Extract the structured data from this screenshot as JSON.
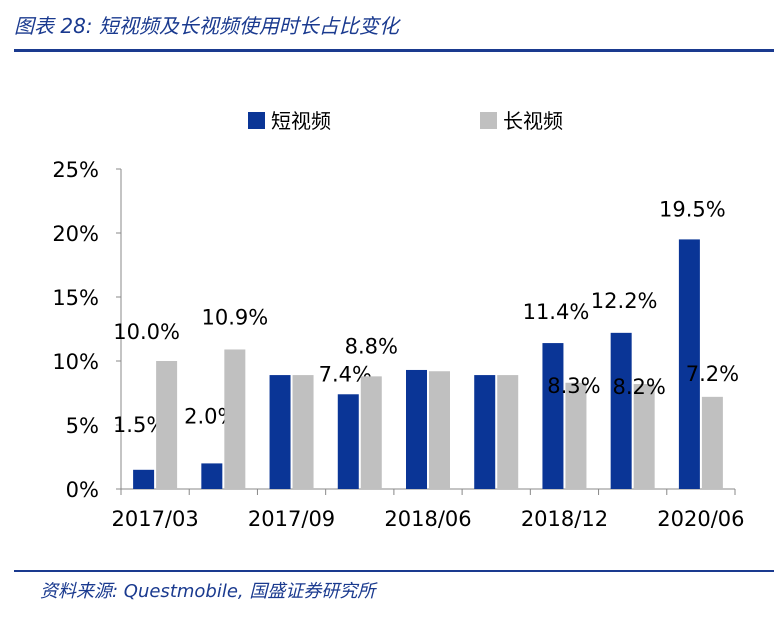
{
  "figure": {
    "title": "图表 28:  短视频及长视频使用时长占比变化",
    "source": "资料来源:  Questmobile,  国盛证券研究所"
  },
  "colors": {
    "short": "#0a3596",
    "long": "#c0c0c0",
    "rule": "#1a3a8f"
  },
  "chart_data": {
    "type": "bar",
    "categories": [
      "2017/03",
      "",
      "2017/09",
      "",
      "2018/06",
      "",
      "2018/12",
      "",
      "2020/06"
    ],
    "series": [
      {
        "name": "短视频",
        "values": [
          1.5,
          2.0,
          8.9,
          7.4,
          9.3,
          8.9,
          11.4,
          12.2,
          19.5
        ],
        "labels": [
          "1.5%",
          "2.0%",
          null,
          "7.4%",
          null,
          null,
          "11.4%",
          "12.2%",
          "19.5%"
        ]
      },
      {
        "name": "长视频",
        "values": [
          10.0,
          10.9,
          8.9,
          8.8,
          9.2,
          8.9,
          8.3,
          8.2,
          7.2
        ],
        "labels": [
          "10.0%",
          "10.9%",
          null,
          "8.8%",
          null,
          null,
          "8.3%",
          "8.2%",
          "7.2%"
        ]
      }
    ],
    "y_ticks": [
      "0%",
      "5%",
      "10%",
      "15%",
      "20%",
      "25%"
    ],
    "ylim": [
      0,
      25
    ],
    "legend_position": "top-center",
    "grid": false
  }
}
